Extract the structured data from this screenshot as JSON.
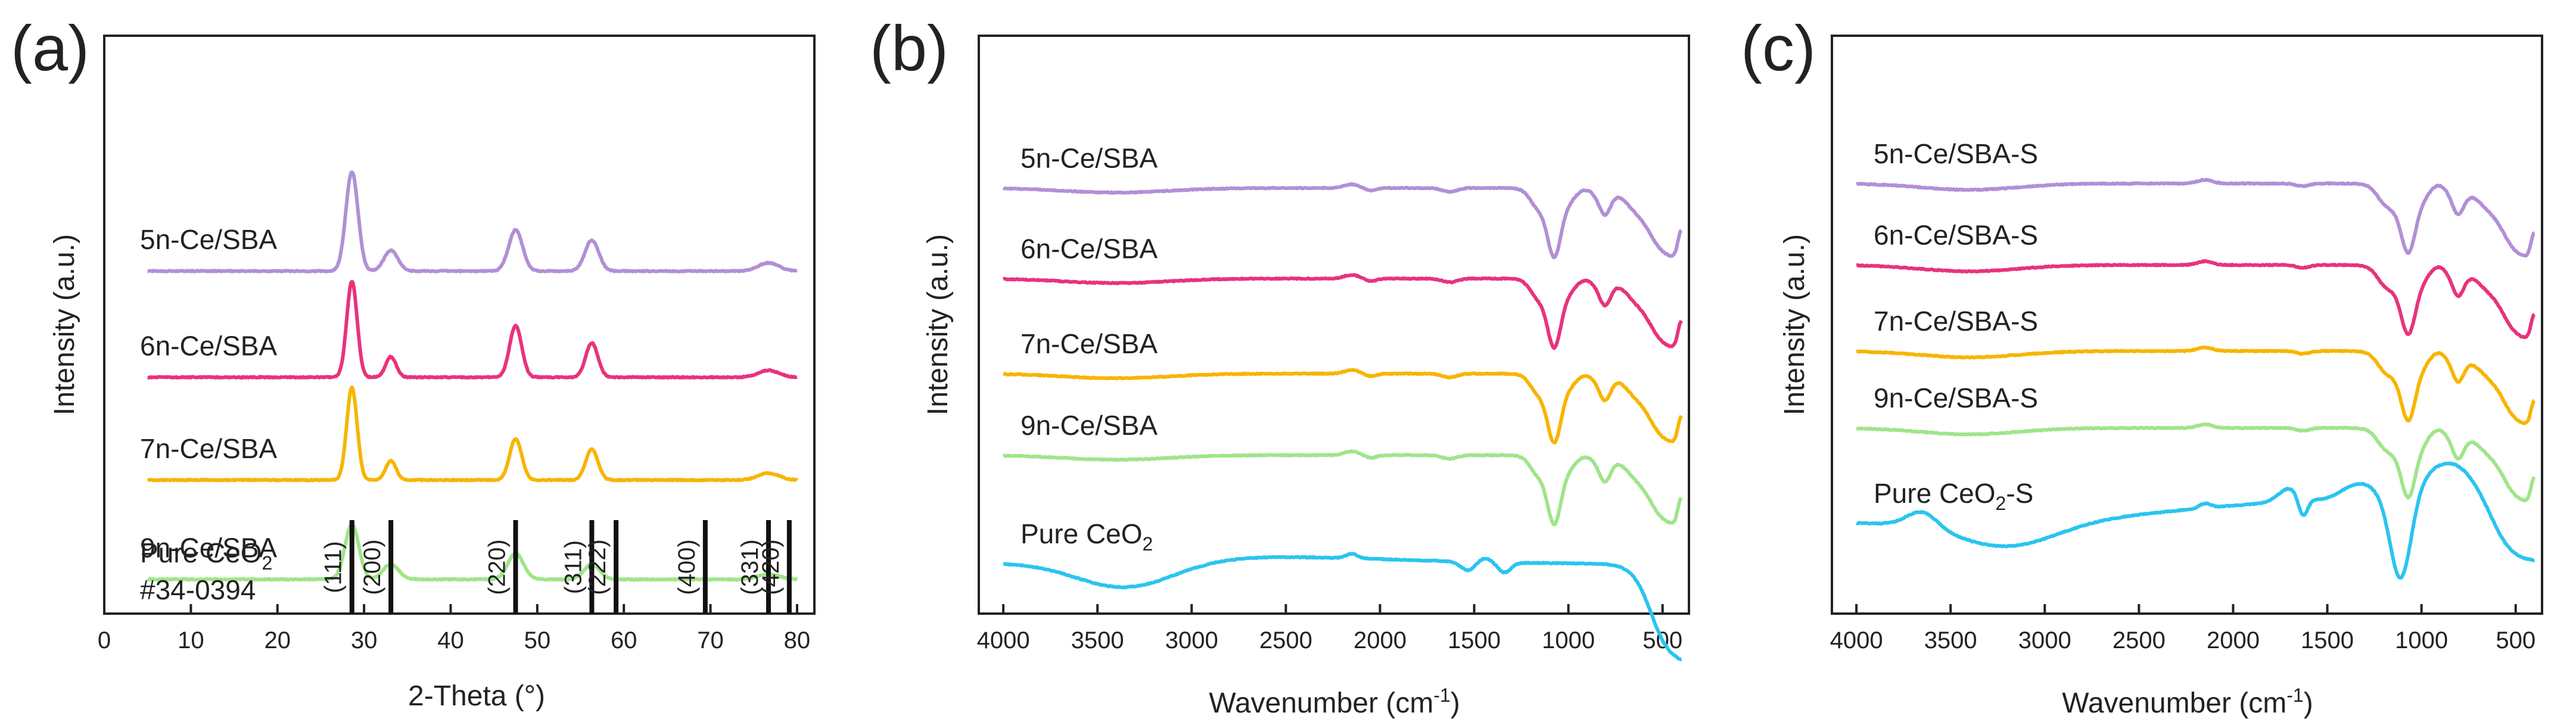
{
  "chart_data": [
    {
      "panel": "(a)",
      "type": "line",
      "xlabel": "2-Theta (°)",
      "ylabel": "Intensity (a.u.)",
      "xlim": [
        0,
        82
      ],
      "xticks": [
        0,
        10,
        20,
        30,
        40,
        50,
        60,
        70,
        80
      ],
      "yticks": [],
      "legend": "labels placed left of each curve",
      "series": [
        {
          "name": "5n-Ce/SBA",
          "color": "#b28fd6",
          "offset": 5.0,
          "peaks": [
            [
              28.6,
              1.45,
              0.7
            ],
            [
              33.1,
              0.3,
              0.8
            ],
            [
              47.5,
              0.6,
              0.8
            ],
            [
              56.3,
              0.45,
              0.8
            ],
            [
              76.7,
              0.12,
              1.2
            ]
          ]
        },
        {
          "name": "6n-Ce/SBA",
          "color": "#e8337c",
          "offset": 3.45,
          "peaks": [
            [
              28.6,
              1.4,
              0.6
            ],
            [
              33.1,
              0.3,
              0.6
            ],
            [
              47.5,
              0.75,
              0.7
            ],
            [
              56.3,
              0.5,
              0.7
            ],
            [
              76.7,
              0.1,
              1.2
            ]
          ]
        },
        {
          "name": "7n-Ce/SBA",
          "color": "#f7b500",
          "offset": 1.95,
          "peaks": [
            [
              28.6,
              1.35,
              0.6
            ],
            [
              33.1,
              0.28,
              0.6
            ],
            [
              47.5,
              0.6,
              0.7
            ],
            [
              56.3,
              0.45,
              0.7
            ],
            [
              76.7,
              0.1,
              1.2
            ]
          ]
        },
        {
          "name": "9n-Ce/SBA",
          "color": "#9fe58a",
          "offset": 0.5,
          "peaks": [
            [
              28.6,
              0.8,
              0.8
            ],
            [
              33.1,
              0.22,
              0.9
            ],
            [
              47.5,
              0.38,
              0.9
            ],
            [
              56.3,
              0.22,
              0.9
            ],
            [
              76.7,
              0.08,
              1.2
            ]
          ]
        }
      ],
      "reference": {
        "title": "Pure CeO",
        "title_sub": "2",
        "card": "#34-0394",
        "lines": [
          {
            "pos": 28.6,
            "hkl": "(111)"
          },
          {
            "pos": 33.1,
            "hkl": "(200)"
          },
          {
            "pos": 47.5,
            "hkl": "(220)"
          },
          {
            "pos": 56.3,
            "hkl": "(311)"
          },
          {
            "pos": 59.1,
            "hkl": "(222)"
          },
          {
            "pos": 69.4,
            "hkl": "(400)"
          },
          {
            "pos": 76.7,
            "hkl": "(331)"
          },
          {
            "pos": 79.1,
            "hkl": "(420)"
          }
        ]
      }
    },
    {
      "panel": "(b)",
      "type": "line",
      "xlabel": "Wavenumber (cm",
      "xlabel_sup": "-1",
      "xlabel_end": ")",
      "ylabel": "Intensity (a.u.)",
      "xlim": [
        4130,
        360
      ],
      "xticks": [
        4000,
        3500,
        3000,
        2500,
        2000,
        1500,
        1000,
        500
      ],
      "yticks": [],
      "legend": "labels above each curve",
      "series": [
        {
          "name": "5n-Ce/SBA",
          "color": "#b28fd6",
          "offset": 9.4,
          "kind": "sba"
        },
        {
          "name": "6n-Ce/SBA",
          "color": "#e8337c",
          "offset": 7.4,
          "kind": "sba"
        },
        {
          "name": "7n-Ce/SBA",
          "color": "#f7b500",
          "offset": 5.3,
          "kind": "sba"
        },
        {
          "name": "9n-Ce/SBA",
          "color": "#9fe58a",
          "offset": 3.5,
          "kind": "sba"
        },
        {
          "name": "Pure CeO",
          "name_sub": "2",
          "color": "#2bc4ef",
          "offset": 1.1,
          "kind": "ceo2"
        }
      ]
    },
    {
      "panel": "(c)",
      "type": "line",
      "xlabel": "Wavenumber (cm",
      "xlabel_sup": "-1",
      "xlabel_end": ")",
      "ylabel": "Intensity (a.u.)",
      "xlim": [
        4130,
        360
      ],
      "xticks": [
        4000,
        3500,
        3000,
        2500,
        2000,
        1500,
        1000,
        500
      ],
      "yticks": [],
      "legend": "labels above each curve",
      "series": [
        {
          "name": "5n-Ce/SBA-S",
          "color": "#b28fd6",
          "offset": 9.5,
          "kind": "sbas"
        },
        {
          "name": "6n-Ce/SBA-S",
          "color": "#e8337c",
          "offset": 7.7,
          "kind": "sbas"
        },
        {
          "name": "7n-Ce/SBA-S",
          "color": "#f7b500",
          "offset": 5.8,
          "kind": "sbas"
        },
        {
          "name": "9n-Ce/SBA-S",
          "color": "#9fe58a",
          "offset": 4.1,
          "kind": "sbas"
        },
        {
          "name": "Pure CeO",
          "name_sub": "2",
          "name_end": "-S",
          "color": "#2bc4ef",
          "offset": 2.0,
          "kind": "ceo2s"
        }
      ]
    }
  ]
}
